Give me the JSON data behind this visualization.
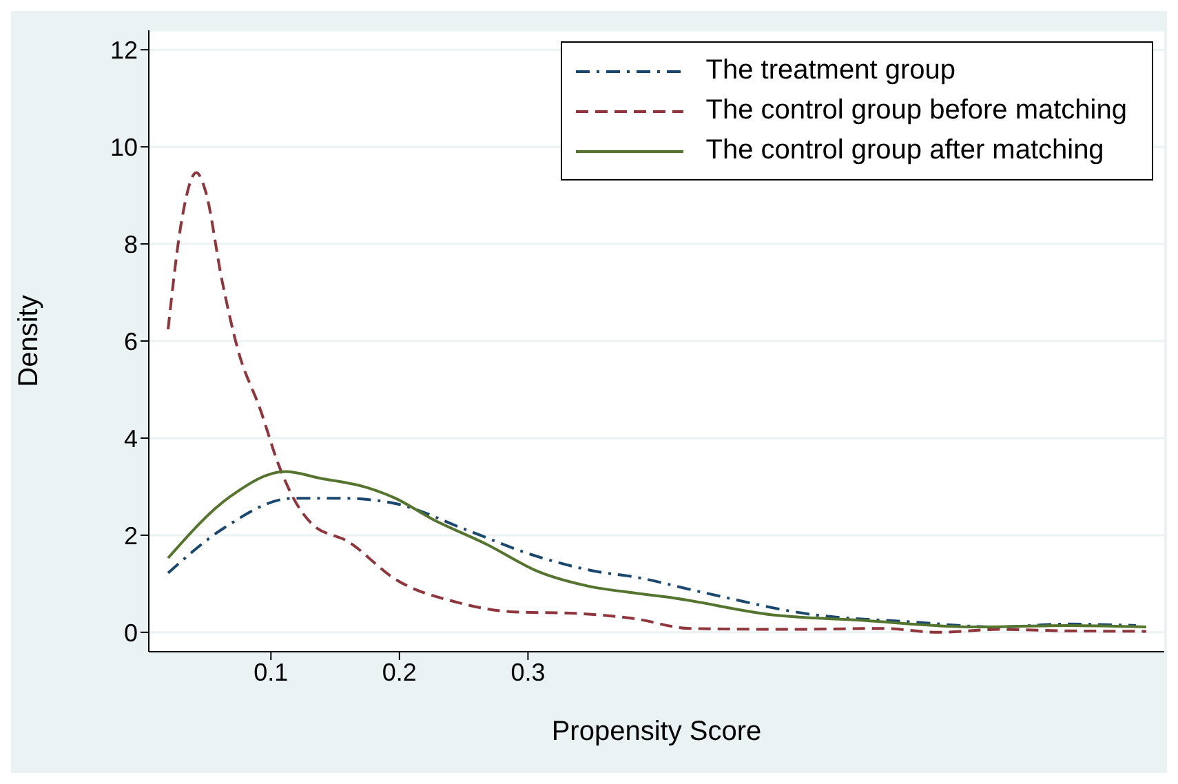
{
  "chart_data": {
    "type": "line",
    "xlabel": "Propensity Score",
    "ylabel": "Density",
    "xlim": [
      0.005,
      0.795
    ],
    "ylim": [
      -0.4,
      12.4
    ],
    "xticks": [
      0.1,
      0.2,
      0.3
    ],
    "yticks": [
      0,
      2,
      4,
      6,
      8,
      10,
      12
    ],
    "grid": "y",
    "legend": "top right",
    "series": [
      {
        "name": "The treatment group",
        "color": "#1a476f",
        "line_style": "dashdot",
        "x": [
          0.02,
          0.063,
          0.117,
          0.157,
          0.197,
          0.254,
          0.304,
          0.354,
          0.383,
          0.433,
          0.523,
          0.595,
          0.666,
          0.719,
          0.773
        ],
        "values": [
          1.22,
          2.14,
          2.76,
          2.76,
          2.65,
          2.09,
          1.59,
          1.25,
          1.14,
          0.84,
          0.36,
          0.22,
          0.11,
          0.17,
          0.14
        ]
      },
      {
        "name": "The control group before matching",
        "color": "#90353b",
        "line_style": "dashed",
        "x": [
          0.02,
          0.031,
          0.042,
          0.049,
          0.062,
          0.074,
          0.092,
          0.106,
          0.117,
          0.132,
          0.16,
          0.197,
          0.246,
          0.289,
          0.337,
          0.383,
          0.426,
          0.504,
          0.576,
          0.619,
          0.666,
          0.719,
          0.781
        ],
        "values": [
          6.24,
          8.55,
          9.47,
          9.1,
          7.24,
          5.85,
          4.57,
          3.45,
          2.79,
          2.23,
          1.87,
          1.09,
          0.61,
          0.42,
          0.39,
          0.28,
          0.08,
          0.06,
          0.08,
          0.0,
          0.06,
          0.03,
          0.02
        ]
      },
      {
        "name": "The control group after matching",
        "color": "#55752f",
        "line_style": "solid",
        "x": [
          0.02,
          0.068,
          0.111,
          0.139,
          0.175,
          0.197,
          0.225,
          0.268,
          0.308,
          0.347,
          0.383,
          0.415,
          0.49,
          0.558,
          0.648,
          0.719,
          0.781
        ],
        "values": [
          1.53,
          2.79,
          3.31,
          3.17,
          2.98,
          2.76,
          2.34,
          1.81,
          1.25,
          0.95,
          0.81,
          0.7,
          0.36,
          0.25,
          0.11,
          0.14,
          0.11
        ]
      }
    ]
  }
}
